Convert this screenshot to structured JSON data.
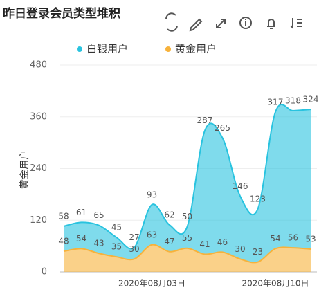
{
  "chart_data": {
    "type": "stacked-area",
    "title": "昨日登录会员类型堆积",
    "y_label": "黄金用户",
    "categories": [
      null,
      null,
      null,
      null,
      null,
      "2020年08月03日",
      null,
      null,
      null,
      null,
      null,
      null,
      "2020年08月10日",
      null,
      null
    ],
    "series": [
      {
        "name": "白银用户",
        "color": "#29c3df",
        "values": [
          58,
          61,
          65,
          45,
          27,
          93,
          62,
          50,
          287,
          265,
          146,
          123,
          317,
          318,
          324
        ]
      },
      {
        "name": "黄金用户",
        "color": "#f7b23b",
        "values": [
          48,
          54,
          43,
          35,
          30,
          63,
          47,
          55,
          41,
          46,
          30,
          23,
          54,
          56,
          53
        ]
      }
    ],
    "ylim": [
      0,
      480
    ],
    "yticks": [
      0,
      120,
      240,
      360,
      480
    ],
    "grid": true
  }
}
